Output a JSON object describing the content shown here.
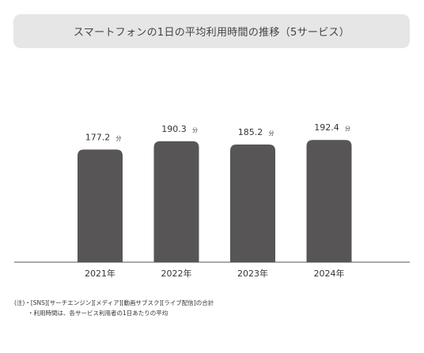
{
  "title": "スマートフォンの1日の平均利用時間の推移（5サービス）",
  "notes": [
    "(注)・[SNS][サーチエンジン][メディア][動画サブスク][ライブ配信]の合計",
    "・利用時間は、各サービス利用者の1日あたりの平均"
  ],
  "colors": {
    "bar": "#575555",
    "title_bg": "#e6e6e6",
    "axis": "#555555"
  },
  "chart_data": {
    "type": "bar",
    "title": "スマートフォンの1日の平均利用時間の推移（5サービス）",
    "categories": [
      "2021年",
      "2022年",
      "2023年",
      "2024年"
    ],
    "values": [
      177.2,
      190.3,
      185.2,
      192.4
    ],
    "value_labels": [
      "177.2",
      "190.3",
      "185.2",
      "192.4"
    ],
    "unit": "分",
    "xlabel": "",
    "ylabel": "",
    "ylim": [
      0,
      220
    ],
    "grid": false,
    "legend": "none"
  }
}
